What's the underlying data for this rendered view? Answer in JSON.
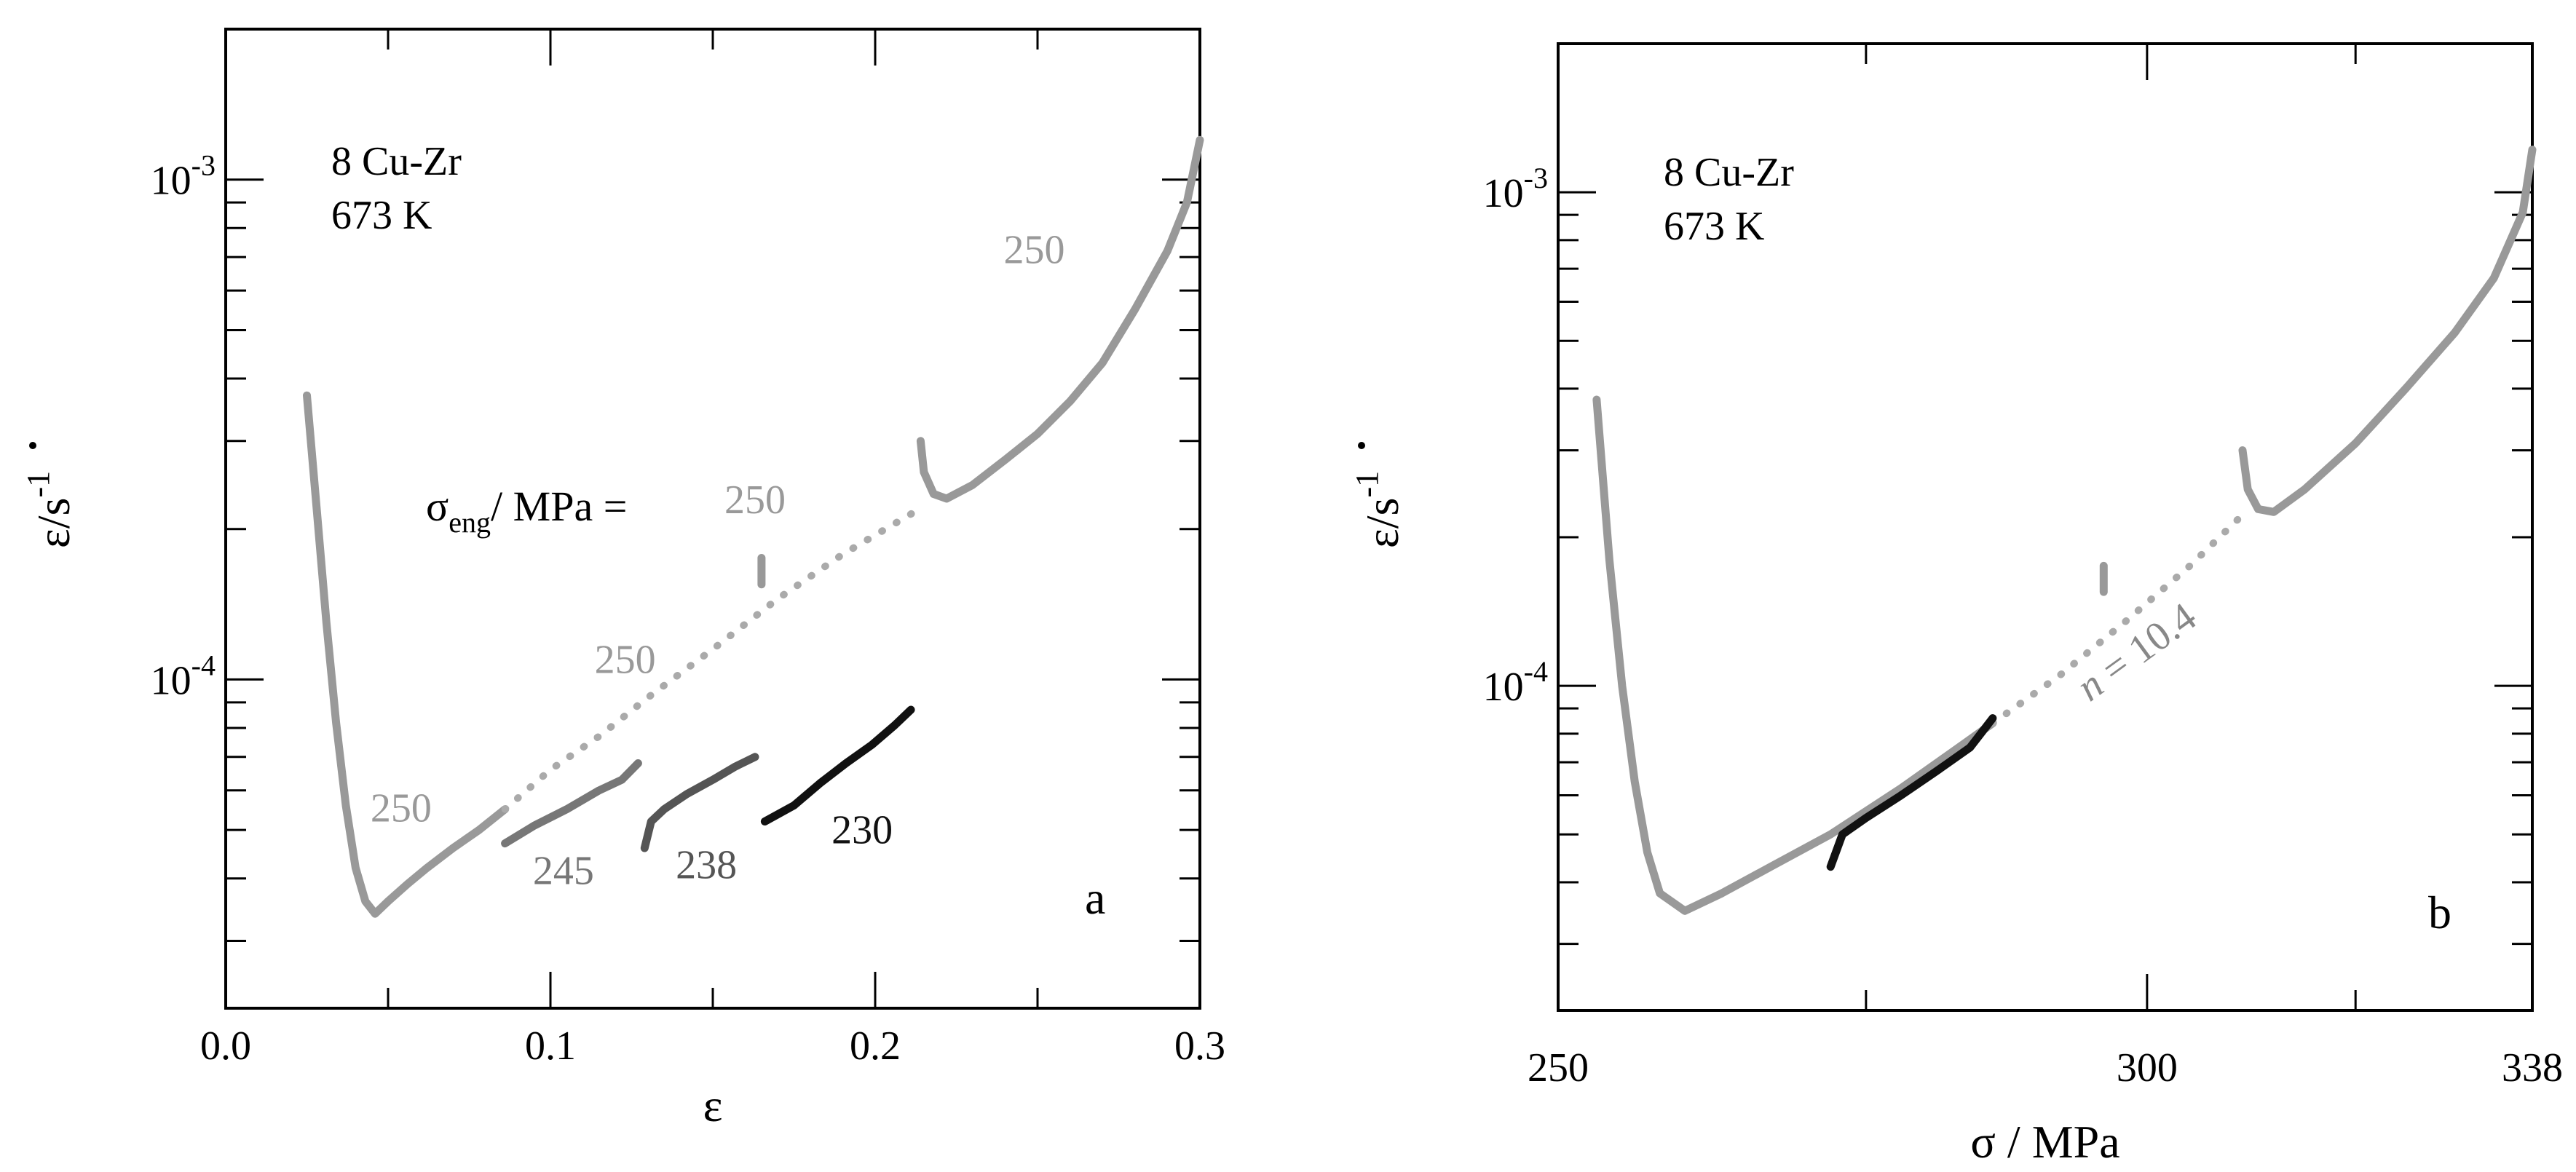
{
  "chart_data": [
    {
      "type": "line",
      "panel_label": "a",
      "yscale": "log",
      "xlim": [
        0.0,
        0.3
      ],
      "ylim": [
        2.2e-05,
        0.002
      ],
      "x_ticks": [
        0.0,
        0.1,
        0.2,
        0.3
      ],
      "x_tick_labels": [
        "0.0",
        "0.1",
        "0.2",
        "0.3"
      ],
      "x_minor_ticks": [
        0.05,
        0.15,
        0.25
      ],
      "y_ticks": [
        0.0001,
        0.001
      ],
      "y_tick_labels": [
        {
          "base": "10",
          "exp": "-4"
        },
        {
          "base": "10",
          "exp": "-3"
        }
      ],
      "xlabel": "ε",
      "ylabel": {
        "sym": "ε",
        "unit": "/s",
        "exp": "-1"
      },
      "annotation": [
        "8 Cu-Zr",
        "673 K"
      ],
      "stress_label": {
        "sym": "σ",
        "sub": "eng",
        "rest": "/ MPa ="
      },
      "series": [
        {
          "name": "250",
          "color": "#999999",
          "style": "solid",
          "points": [
            [
              0.025,
              0.00037
            ],
            [
              0.028,
              0.00022
            ],
            [
              0.031,
              0.00013
            ],
            [
              0.034,
              8.2e-05
            ],
            [
              0.037,
              5.6e-05
            ],
            [
              0.04,
              4.2e-05
            ],
            [
              0.043,
              3.6e-05
            ],
            [
              0.046,
              3.4e-05
            ],
            [
              0.05,
              3.6e-05
            ],
            [
              0.056,
              3.9e-05
            ],
            [
              0.062,
              4.2e-05
            ],
            [
              0.07,
              4.6e-05
            ],
            [
              0.078,
              5e-05
            ],
            [
              0.086,
              5.5e-05
            ]
          ]
        },
        {
          "name": "250 (dotted)",
          "color": "#aaaaaa",
          "style": "dotted",
          "points": [
            [
              0.086,
              5.5e-05
            ],
            [
              0.1,
              6.6e-05
            ],
            [
              0.115,
              7.7e-05
            ],
            [
              0.13,
              9.2e-05
            ],
            [
              0.15,
              0.000115
            ],
            [
              0.17,
              0.000145
            ],
            [
              0.19,
              0.000178
            ],
            [
              0.214,
              0.00022
            ]
          ]
        },
        {
          "name": "250 (jump)",
          "color": "#999999",
          "style": "solid",
          "points": [
            [
              0.214,
              0.0003
            ],
            [
              0.215,
              0.00026
            ],
            [
              0.218,
              0.000235
            ],
            [
              0.222,
              0.00023
            ],
            [
              0.23,
              0.000245
            ],
            [
              0.24,
              0.000275
            ],
            [
              0.25,
              0.00031
            ],
            [
              0.26,
              0.00036
            ],
            [
              0.27,
              0.00043
            ],
            [
              0.28,
              0.00055
            ],
            [
              0.29,
              0.00072
            ],
            [
              0.296,
              0.0009
            ],
            [
              0.3,
              0.0012
            ]
          ]
        },
        {
          "name": "250 (short)",
          "color": "#999999",
          "style": "solid",
          "points": [
            [
              0.165,
              0.000175
            ],
            [
              0.165,
              0.000155
            ]
          ]
        },
        {
          "name": "245",
          "color": "#777777",
          "style": "solid",
          "points": [
            [
              0.086,
              4.7e-05
            ],
            [
              0.095,
              5.1e-05
            ],
            [
              0.105,
              5.5e-05
            ],
            [
              0.115,
              6e-05
            ],
            [
              0.122,
              6.3e-05
            ],
            [
              0.127,
              6.8e-05
            ]
          ]
        },
        {
          "name": "238",
          "color": "#555555",
          "style": "solid",
          "points": [
            [
              0.129,
              4.6e-05
            ],
            [
              0.131,
              5.2e-05
            ],
            [
              0.135,
              5.5e-05
            ],
            [
              0.142,
              5.9e-05
            ],
            [
              0.15,
              6.3e-05
            ],
            [
              0.157,
              6.7e-05
            ],
            [
              0.163,
              7e-05
            ]
          ]
        },
        {
          "name": "230",
          "color": "#111111",
          "style": "solid",
          "points": [
            [
              0.166,
              5.2e-05
            ],
            [
              0.175,
              5.6e-05
            ],
            [
              0.183,
              6.2e-05
            ],
            [
              0.191,
              6.8e-05
            ],
            [
              0.199,
              7.4e-05
            ],
            [
              0.206,
              8.1e-05
            ],
            [
              0.211,
              8.7e-05
            ]
          ]
        }
      ],
      "labels": [
        {
          "text": "250",
          "x": 0.054,
          "y": 5.2e-05,
          "color": "#999999"
        },
        {
          "text": "245",
          "x": 0.104,
          "y": 3.9e-05,
          "color": "#777777"
        },
        {
          "text": "238",
          "x": 0.148,
          "y": 4e-05,
          "color": "#555555"
        },
        {
          "text": "230",
          "x": 0.196,
          "y": 4.7e-05,
          "color": "#111111"
        },
        {
          "text": "250",
          "x": 0.123,
          "y": 0.000103,
          "color": "#999999"
        },
        {
          "text": "250",
          "x": 0.163,
          "y": 0.000215,
          "color": "#999999"
        },
        {
          "text": "250",
          "x": 0.249,
          "y": 0.00068,
          "color": "#999999"
        }
      ]
    },
    {
      "type": "line",
      "panel_label": "b",
      "yscale": "log",
      "xscale": "log",
      "xlim": [
        250,
        338
      ],
      "ylim": [
        2.2e-05,
        0.002
      ],
      "x_ticks": [
        250,
        300,
        338
      ],
      "x_tick_labels": [
        "250",
        "300",
        "338"
      ],
      "x_minor_ticks": [
        275,
        320
      ],
      "y_ticks": [
        0.0001,
        0.001
      ],
      "y_tick_labels": [
        {
          "base": "10",
          "exp": "-4"
        },
        {
          "base": "10",
          "exp": "-3"
        }
      ],
      "xlabel": "σ / MPa",
      "ylabel": {
        "sym": "ε",
        "unit": "/s",
        "exp": "-1"
      },
      "annotation": [
        "8 Cu-Zr",
        "673 K"
      ],
      "fit_label": {
        "var": "n",
        "text": " = 10.4",
        "color": "#888888"
      },
      "series": [
        {
          "name": "gray",
          "color": "#999999",
          "style": "solid",
          "points": [
            [
              253,
              0.00038
            ],
            [
              254,
              0.00018
            ],
            [
              255,
              0.0001
            ],
            [
              256,
              6.4e-05
            ],
            [
              257,
              4.6e-05
            ],
            [
              258,
              3.8e-05
            ],
            [
              260,
              3.5e-05
            ],
            [
              263,
              3.8e-05
            ],
            [
              267,
              4.3e-05
            ],
            [
              272,
              5e-05
            ],
            [
              278,
              6.2e-05
            ],
            [
              283,
              7.5e-05
            ],
            [
              286,
              8.4e-05
            ]
          ]
        },
        {
          "name": "dotted fit",
          "color": "#aaaaaa",
          "style": "dotted",
          "points": [
            [
              286,
              8.4e-05
            ],
            [
              292,
              0.000105
            ],
            [
              298,
              0.000135
            ],
            [
              304,
              0.000175
            ],
            [
              309,
              0.000222
            ]
          ]
        },
        {
          "name": "gray jump",
          "color": "#999999",
          "style": "solid",
          "points": [
            [
              309,
              0.0003
            ],
            [
              309.5,
              0.00025
            ],
            [
              310.5,
              0.000228
            ],
            [
              312,
              0.000225
            ],
            [
              315,
              0.00025
            ],
            [
              320,
              0.00031
            ],
            [
              325,
              0.0004
            ],
            [
              330,
              0.00052
            ],
            [
              334,
              0.00067
            ],
            [
              337,
              0.00091
            ],
            [
              338,
              0.00122
            ]
          ]
        },
        {
          "name": "gray short",
          "color": "#999999",
          "style": "solid",
          "points": [
            [
              296,
              0.000175
            ],
            [
              296,
              0.000155
            ]
          ]
        },
        {
          "name": "black",
          "color": "#111111",
          "style": "solid",
          "points": [
            [
              272,
              4.3e-05
            ],
            [
              273,
              5e-05
            ],
            [
              275,
              5.4e-05
            ],
            [
              278,
              6e-05
            ],
            [
              281,
              6.7e-05
            ],
            [
              284,
              7.5e-05
            ],
            [
              286,
              8.6e-05
            ]
          ]
        }
      ]
    }
  ]
}
